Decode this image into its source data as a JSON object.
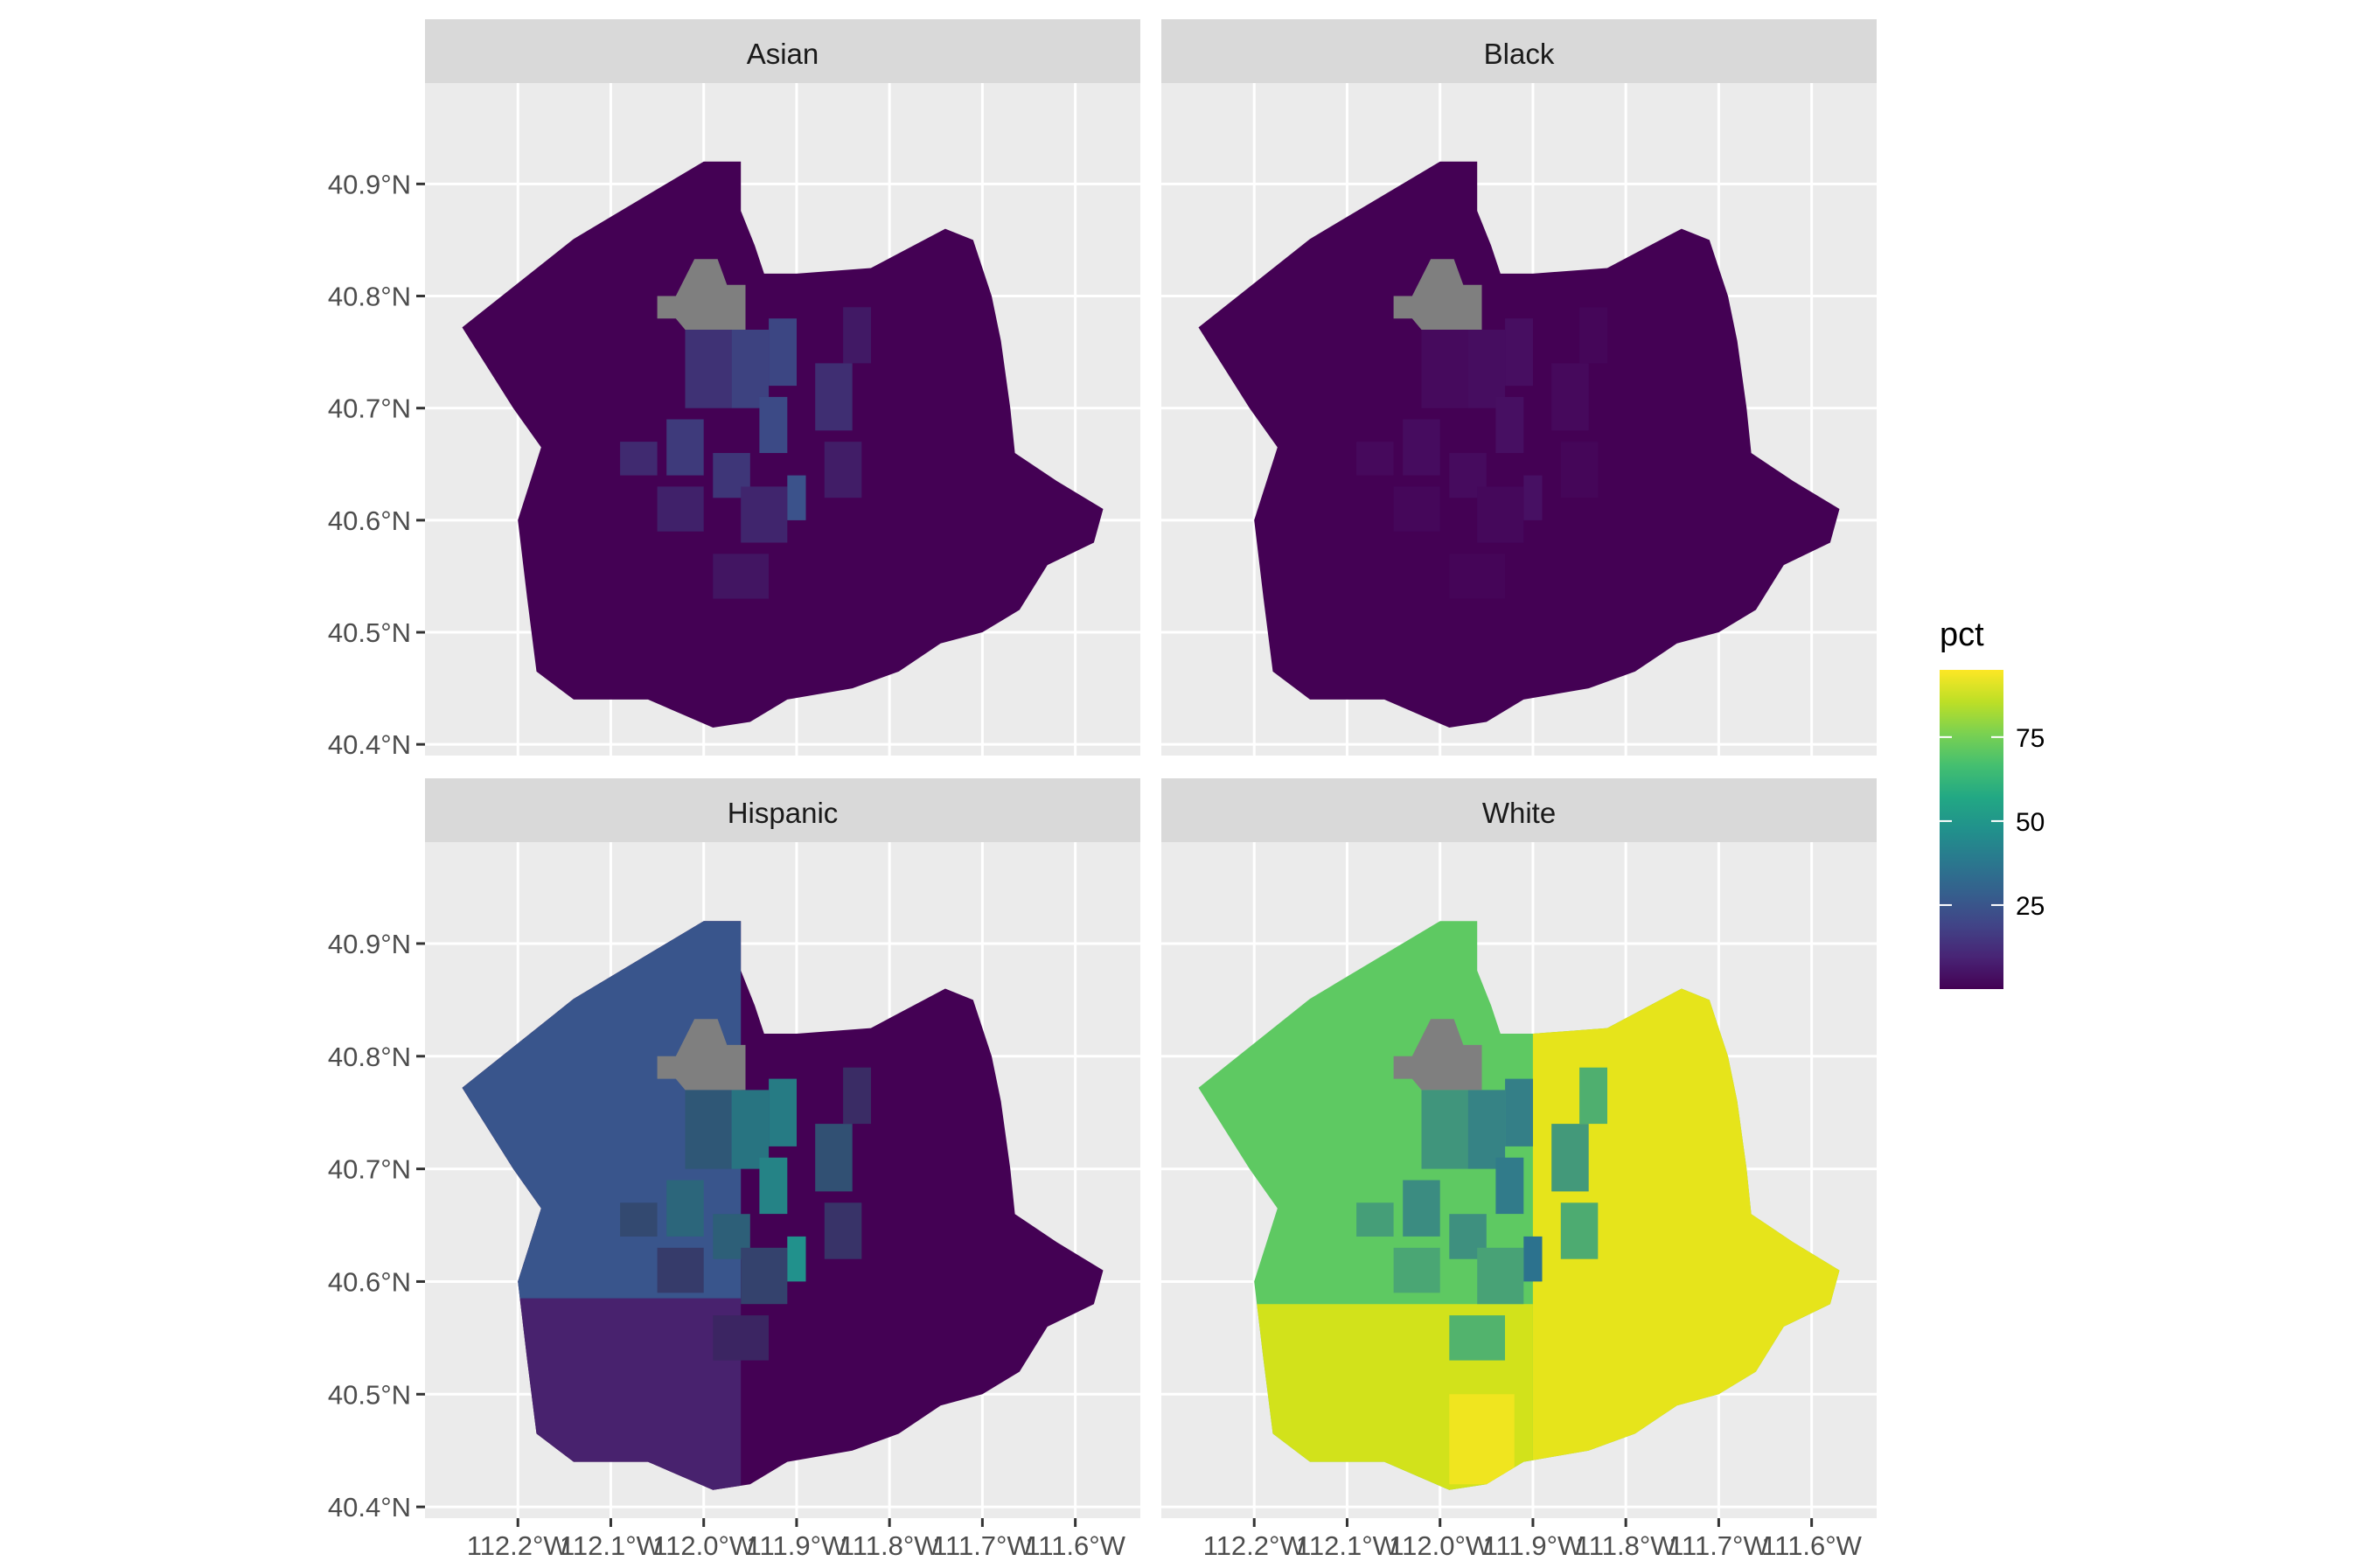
{
  "chart_data": {
    "type": "choropleth-facet",
    "facets": [
      {
        "name": "Asian",
        "low_color": "#440154",
        "high_color": "#46337e",
        "mid_color": "#3b528b"
      },
      {
        "name": "Black",
        "low_color": "#440154",
        "high_color": "#471063",
        "mid_color": "#471063"
      },
      {
        "name": "Hispanic",
        "low_color": "#440154",
        "high_color": "#3b528b",
        "mid_color": "#21918c"
      },
      {
        "name": "White",
        "low_color": "#5ec962",
        "high_color": "#e6e41b",
        "mid_color": "#2c728e"
      }
    ],
    "no_data_color": "#7f7f7f",
    "x_axis": {
      "ticks": [
        -112.2,
        -112.1,
        -112.0,
        -111.9,
        -111.8,
        -111.7,
        -111.6
      ],
      "labels": [
        "112.2°W",
        "112.1°W",
        "112.0°W",
        "111.9°W",
        "111.8°W",
        "111.7°W",
        "111.6°W"
      ],
      "range": [
        -112.3,
        -111.53
      ]
    },
    "y_axis": {
      "ticks": [
        40.4,
        40.5,
        40.6,
        40.7,
        40.8,
        40.9
      ],
      "labels": [
        "40.4°N",
        "40.5°N",
        "40.6°N",
        "40.7°N",
        "40.8°N",
        "40.9°N"
      ],
      "range": [
        40.39,
        40.99
      ]
    },
    "legend": {
      "title": "pct",
      "ticks": [
        25,
        50,
        75
      ],
      "labels": [
        "25",
        "50",
        "75"
      ],
      "range": [
        0,
        95
      ],
      "colormap": "viridis",
      "placement": "right"
    },
    "grid": true
  }
}
